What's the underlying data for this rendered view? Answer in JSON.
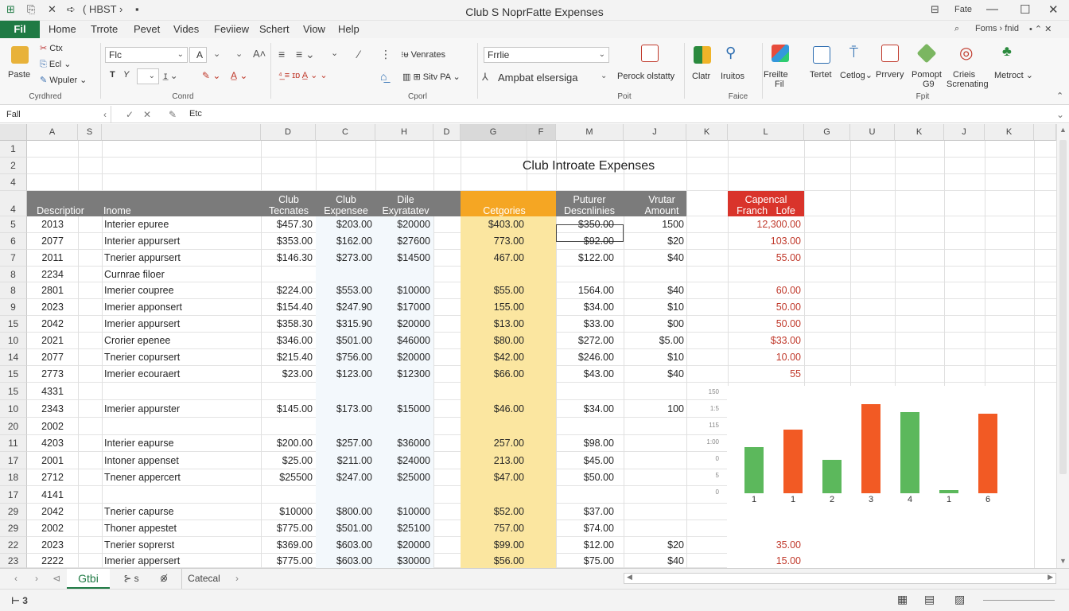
{
  "titlebar": {
    "quick_access": [
      "⊞",
      "⎘",
      "✕",
      "➪",
      "( HBST ›",
      "▪"
    ],
    "title": "Club S NoprFatte Expenses",
    "right_label": "Fate",
    "controls": [
      "—",
      "☐",
      "✕"
    ]
  },
  "menu": {
    "file": "Fil",
    "tabs": [
      "Home",
      "Trrote",
      "Pevet",
      "Vides",
      "Feviiew",
      "Schert",
      "Viow",
      "Help"
    ],
    "right": "Foms › fnid",
    "right2": "• ⌃ ✕"
  },
  "ribbon": {
    "clipboard": {
      "paste": "Paste",
      "cut": "Ctx",
      "copy": "Ecl",
      "painter": "Wpuler",
      "group": "Cyrdhred"
    },
    "font": {
      "name": "Flc",
      "size": "A",
      "bold": "T",
      "italic": "Y",
      "group": "Conrd"
    },
    "align": {
      "wrap": "Venrates",
      "merge": "Sitv PA",
      "group": "Cporl"
    },
    "number": {
      "format": "Frrlie",
      "style": "Ampbat elsersiga",
      "cond": "Perock olstatty",
      "group": "Poit"
    },
    "cells": {
      "items": [
        "Clatr",
        "Iruitos"
      ],
      "group": "Faice"
    },
    "editing": {
      "items": [
        "Freilte",
        "Tertet",
        "Cetlog⌄",
        "Prrvery",
        "Pomopt",
        "Crieis",
        "Metroct ⌄"
      ],
      "sub": [
        "Fil",
        "G9",
        "Screnating"
      ],
      "group": "Fpit"
    }
  },
  "formula_bar": {
    "name_box": "Fall",
    "value": "Etc"
  },
  "columns": [
    "A",
    "S",
    "",
    "D",
    "C",
    "H",
    "D",
    "G",
    "F",
    "M",
    "J",
    "K",
    "L",
    "G",
    "U",
    "K",
    "J",
    "K"
  ],
  "sheet_title": "Club Introate Expenses",
  "header_row": {
    "description": "Descriptior",
    "income": "Inome",
    "club_tecnates": [
      "Club",
      "Tecnates"
    ],
    "club_expense": [
      "Club",
      "Expensee"
    ],
    "dile": [
      "Dile",
      "Exyratatev"
    ],
    "categories": "Cetgories",
    "puturer": [
      "Puturer",
      "Descnlinies"
    ],
    "vrutar": [
      "Vrutar",
      "Amount"
    ],
    "capencal": [
      "Capencal",
      "Franch",
      "Lofe"
    ]
  },
  "row_labels": [
    "1",
    "2",
    "4",
    "4",
    "5",
    "6",
    "7",
    "8",
    "8",
    "9",
    "15",
    "10",
    "14",
    "15",
    "15",
    "10",
    "20",
    "11",
    "17",
    "18",
    "17",
    "29",
    "29",
    "22",
    "23"
  ],
  "rows": [
    {
      "a": "2013",
      "desc": "Interier epuree",
      "d": "$457.30",
      "c": "$203.00",
      "h": "$20000",
      "g": "$403.00",
      "m": "$350.00",
      "j": "1500",
      "l": "12,300.00"
    },
    {
      "a": "2077",
      "desc": "Interier appursert",
      "d": "$353.00",
      "c": "$162.00",
      "h": "$27600",
      "g": "773.00",
      "m": "$92.00",
      "j": "$20",
      "l": "103.00"
    },
    {
      "a": "2011",
      "desc": "Tnerier appursert",
      "d": "$146.30",
      "c": "$273.00",
      "h": "$14500",
      "g": "467.00",
      "m": "$122.00",
      "j": "$40",
      "l": "55.00"
    },
    {
      "a": "2234",
      "desc": "Curnrae filoer",
      "d": "",
      "c": "",
      "h": "",
      "g": "",
      "m": "",
      "j": "",
      "l": ""
    },
    {
      "a": "2801",
      "desc": "Imerier coupree",
      "d": "$224.00",
      "c": "$553.00",
      "h": "$10000",
      "g": "$55.00",
      "m": "1564.00",
      "j": "$40",
      "l": "60.00"
    },
    {
      "a": "2023",
      "desc": "Imerier apponsert",
      "d": "$154.40",
      "c": "$247.90",
      "h": "$17000",
      "g": "155.00",
      "m": "$34.00",
      "j": "$10",
      "l": "50.00"
    },
    {
      "a": "2042",
      "desc": "Imerier appursert",
      "d": "$358.30",
      "c": "$315.90",
      "h": "$20000",
      "g": "$13.00",
      "m": "$33.00",
      "j": "$00",
      "l": "50.00"
    },
    {
      "a": "2021",
      "desc": "Crorier epenee",
      "d": "$346.00",
      "c": "$501.00",
      "h": "$46000",
      "g": "$80.00",
      "m": "$272.00",
      "j": "$5.00",
      "l": "$33.00"
    },
    {
      "a": "2077",
      "desc": "Tnerier copursert",
      "d": "$215.40",
      "c": "$756.00",
      "h": "$20000",
      "g": "$42.00",
      "m": "$246.00",
      "j": "$10",
      "l": "10.00"
    },
    {
      "a": "2773",
      "desc": "Imerier ecouraert",
      "d": "$23.00",
      "c": "$123.00",
      "h": "$12300",
      "g": "$66.00",
      "m": "$43.00",
      "j": "$40",
      "l": "55"
    },
    {
      "a": "4331",
      "desc": "",
      "d": "",
      "c": "",
      "h": "",
      "g": "",
      "m": "",
      "j": "",
      "l": ""
    },
    {
      "a": "2343",
      "desc": "Imerier appurster",
      "d": "$145.00",
      "c": "$173.00",
      "h": "$15000",
      "g": "$46.00",
      "m": "$34.00",
      "j": "100",
      "l": ""
    },
    {
      "a": "2002",
      "desc": "",
      "d": "",
      "c": "",
      "h": "",
      "g": "",
      "m": "",
      "j": "",
      "l": ""
    },
    {
      "a": "4203",
      "desc": "Interier eapurse",
      "d": "$200.00",
      "c": "$257.00",
      "h": "$36000",
      "g": "257.00",
      "m": "$98.00",
      "j": "",
      "l": ""
    },
    {
      "a": "2001",
      "desc": "Intoner appenset",
      "d": "$25.00",
      "c": "$211.00",
      "h": "$24000",
      "g": "213.00",
      "m": "$45.00",
      "j": "",
      "l": ""
    },
    {
      "a": "2712",
      "desc": "Tnener appercert",
      "d": "$25500",
      "c": "$247.00",
      "h": "$25000",
      "g": "$47.00",
      "m": "$50.00",
      "j": "",
      "l": ""
    },
    {
      "a": "4141",
      "desc": "",
      "d": "",
      "c": "",
      "h": "",
      "g": "",
      "m": "",
      "j": "",
      "l": ""
    },
    {
      "a": "2042",
      "desc": "Tnerier capurse",
      "d": "$10000",
      "c": "$800.00",
      "h": "$10000",
      "g": "$52.00",
      "m": "$37.00",
      "j": "",
      "l": ""
    },
    {
      "a": "2002",
      "desc": "Thoner appestet",
      "d": "$775.00",
      "c": "$501.00",
      "h": "$25100",
      "g": "757.00",
      "m": "$74.00",
      "j": "",
      "l": ""
    },
    {
      "a": "2023",
      "desc": "Tnerier soprerst",
      "d": "$369.00",
      "c": "$603.00",
      "h": "$20000",
      "g": "$99.00",
      "m": "$12.00",
      "j": "$20",
      "l": "35.00"
    },
    {
      "a": "2222",
      "desc": "Imerier appersert",
      "d": "$775.00",
      "c": "$603.00",
      "h": "$30000",
      "g": "$56.00",
      "m": "$75.00",
      "j": "$40",
      "l": "15.00"
    }
  ],
  "chart_data": {
    "type": "bar",
    "yticks": [
      "150",
      "1:5",
      "115",
      "1:00",
      "0",
      "5",
      "0"
    ],
    "categories": [
      "1",
      "1",
      "2",
      "3",
      "4",
      "1",
      "6"
    ],
    "values": [
      69,
      95,
      50,
      133,
      122,
      5,
      119
    ],
    "colors": [
      "#5cb85c",
      "#f25a24",
      "#5cb85c",
      "#f25a24",
      "#5cb85c",
      "#5cb85c",
      "#f25a24"
    ],
    "ylim": [
      0,
      150
    ]
  },
  "sheets": {
    "nav": [
      "‹",
      "›",
      "⊲"
    ],
    "tabs": [
      "Gtbi",
      "⊱ s",
      "⊗̸",
      "Catecal"
    ],
    "active": 0
  },
  "statusbar": {
    "left": "⊢ 3",
    "icons": [
      "▦",
      "▤",
      "▨"
    ],
    "zoom": "- ———— +"
  },
  "colors": {
    "excel_green": "#1f7a44",
    "header_gray": "#7b7b7b",
    "category_orange": "#f5a623",
    "category_fill": "#fbe7a1",
    "red_header": "#d9342b",
    "red_text": "#c0392b"
  }
}
